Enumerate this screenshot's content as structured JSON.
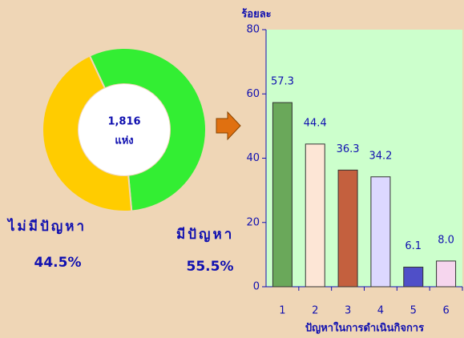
{
  "chart_data": [
    {
      "type": "pie",
      "categories": [
        "มีปัญหา",
        "ไม่มีปัญหา"
      ],
      "values": [
        55.5,
        44.5
      ],
      "value_labels": [
        "55.5%",
        "44.5%"
      ],
      "colors": [
        "#33ee33",
        "#ffcc00"
      ],
      "center_label": [
        "1,816",
        "แห่ง"
      ]
    },
    {
      "type": "bar",
      "ylabel": "ร้อยละ",
      "xlabel": "ปัญหาในการดำเนินกิจการ",
      "categories": [
        "1",
        "2",
        "3",
        "4",
        "5",
        "6"
      ],
      "values": [
        57.3,
        44.4,
        36.3,
        34.2,
        6.1,
        8.0
      ],
      "value_labels": [
        "57.3",
        "44.4",
        "36.3",
        "34.2",
        "6.1",
        "8.0"
      ],
      "colors": [
        "#6aa85a",
        "#fde6d6",
        "#c4603e",
        "#dcd8ff",
        "#4f4fc8",
        "#f6d6ee"
      ],
      "ylim": [
        0,
        80
      ],
      "yticks": [
        0,
        20,
        40,
        60,
        80
      ]
    }
  ]
}
